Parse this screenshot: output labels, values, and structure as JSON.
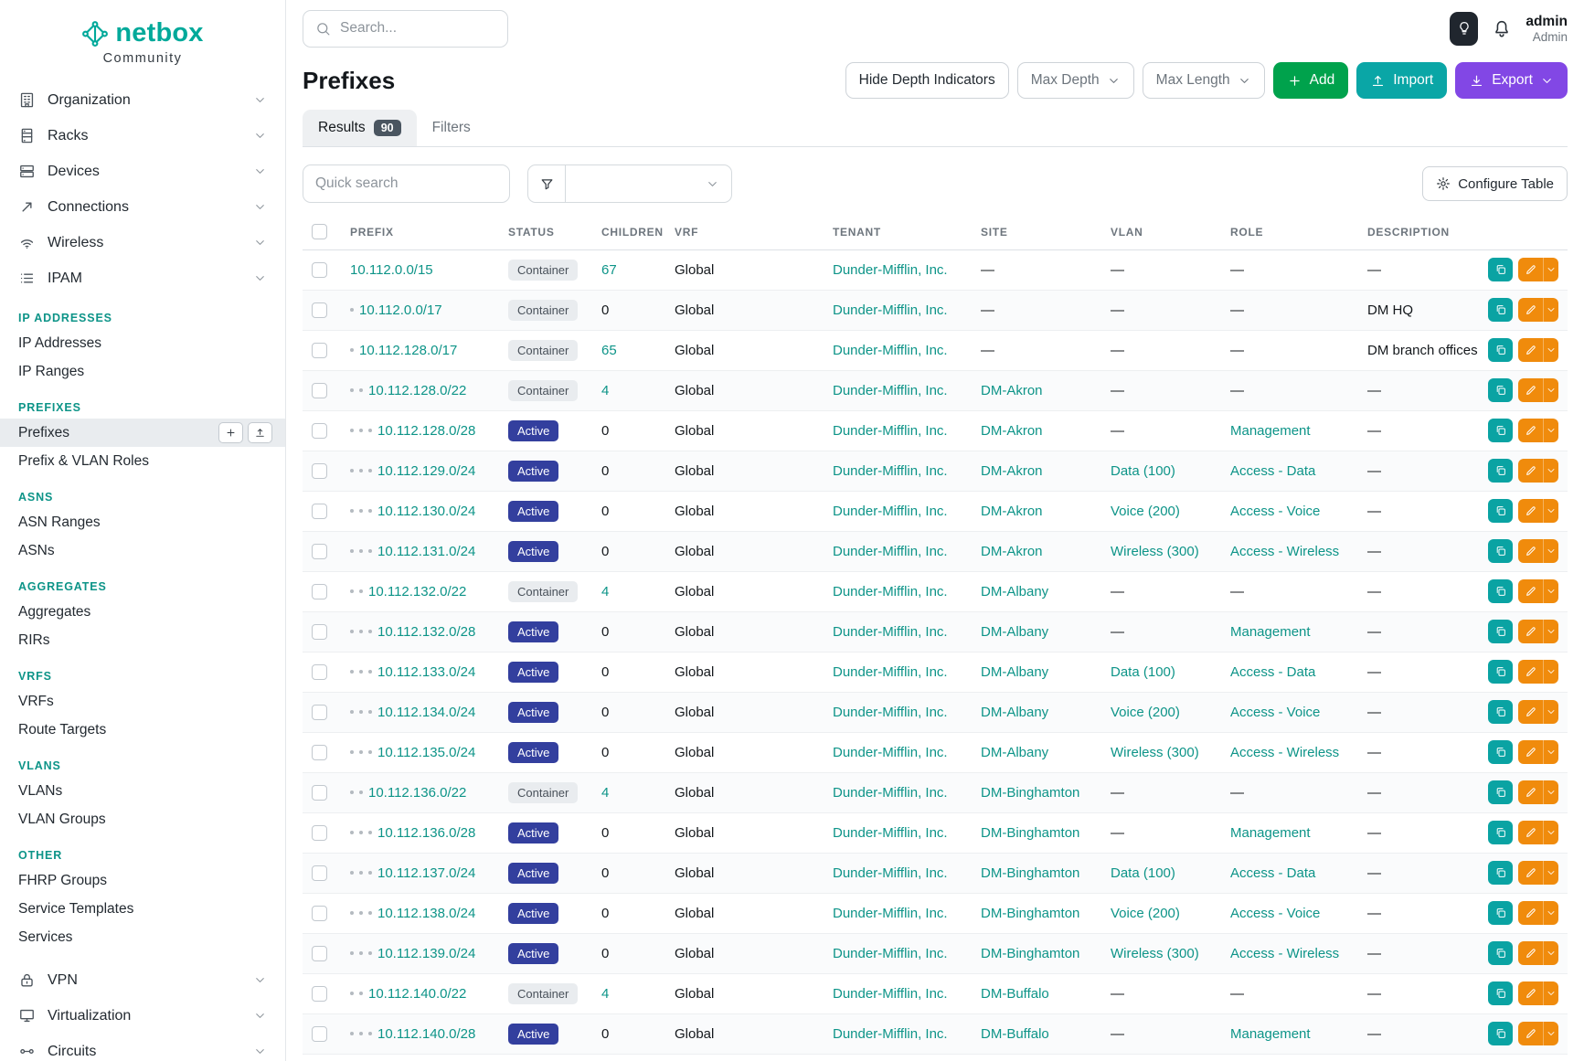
{
  "brand": {
    "name": "netbox",
    "subtitle": "Community"
  },
  "topbar": {
    "search_placeholder": "Search...",
    "user_name": "admin",
    "user_role": "Admin"
  },
  "sidebar": {
    "top_items": [
      {
        "label": "Organization",
        "icon": "organization-icon"
      },
      {
        "label": "Racks",
        "icon": "racks-icon"
      },
      {
        "label": "Devices",
        "icon": "devices-icon"
      },
      {
        "label": "Connections",
        "icon": "connections-icon"
      },
      {
        "label": "Wireless",
        "icon": "wireless-icon"
      },
      {
        "label": "IPAM",
        "icon": "ipam-icon"
      }
    ],
    "sections": [
      {
        "header": "IP ADDRESSES",
        "links": [
          {
            "label": "IP Addresses"
          },
          {
            "label": "IP Ranges"
          }
        ]
      },
      {
        "header": "PREFIXES",
        "links": [
          {
            "label": "Prefixes",
            "active": true,
            "quick_actions": true
          },
          {
            "label": "Prefix & VLAN Roles"
          }
        ]
      },
      {
        "header": "ASNS",
        "links": [
          {
            "label": "ASN Ranges"
          },
          {
            "label": "ASNs"
          }
        ]
      },
      {
        "header": "AGGREGATES",
        "links": [
          {
            "label": "Aggregates"
          },
          {
            "label": "RIRs"
          }
        ]
      },
      {
        "header": "VRFS",
        "links": [
          {
            "label": "VRFs"
          },
          {
            "label": "Route Targets"
          }
        ]
      },
      {
        "header": "VLANS",
        "links": [
          {
            "label": "VLANs"
          },
          {
            "label": "VLAN Groups"
          }
        ]
      },
      {
        "header": "OTHER",
        "links": [
          {
            "label": "FHRP Groups"
          },
          {
            "label": "Service Templates"
          },
          {
            "label": "Services"
          }
        ]
      }
    ],
    "bottom_items": [
      {
        "label": "VPN",
        "icon": "vpn-icon"
      },
      {
        "label": "Virtualization",
        "icon": "virtualization-icon"
      },
      {
        "label": "Circuits",
        "icon": "circuits-icon"
      }
    ]
  },
  "page": {
    "title": "Prefixes",
    "hide_depth_label": "Hide Depth Indicators",
    "max_depth_label": "Max Depth",
    "max_length_label": "Max Length",
    "add_label": "Add",
    "import_label": "Import",
    "export_label": "Export",
    "tabs": [
      {
        "label": "Results",
        "badge": "90",
        "active": true
      },
      {
        "label": "Filters",
        "active": false
      }
    ],
    "quick_search_placeholder": "Quick search",
    "configure_table_label": "Configure Table"
  },
  "colors": {
    "brand_teal": "#00a99a",
    "link_teal": "#0d9488",
    "add_green": "#00a24c",
    "import_teal": "#0aa6a6",
    "export_purple": "#8247e5",
    "active_badge": "#333f9e",
    "edit_orange": "#f08b0c"
  },
  "table": {
    "columns": [
      "PREFIX",
      "STATUS",
      "CHILDREN",
      "VRF",
      "TENANT",
      "SITE",
      "VLAN",
      "ROLE",
      "DESCRIPTION"
    ],
    "rows": [
      {
        "depth": 0,
        "prefix": "10.112.0.0/15",
        "status": "Container",
        "children": "67",
        "children_link": true,
        "vrf": "Global",
        "tenant": "Dunder-Mifflin, Inc.",
        "site": "—",
        "vlan": "—",
        "role": "—",
        "description": "—"
      },
      {
        "depth": 1,
        "prefix": "10.112.0.0/17",
        "status": "Container",
        "children": "0",
        "children_link": false,
        "vrf": "Global",
        "tenant": "Dunder-Mifflin, Inc.",
        "site": "—",
        "vlan": "—",
        "role": "—",
        "description": "DM HQ"
      },
      {
        "depth": 1,
        "prefix": "10.112.128.0/17",
        "status": "Container",
        "children": "65",
        "children_link": true,
        "vrf": "Global",
        "tenant": "Dunder-Mifflin, Inc.",
        "site": "—",
        "vlan": "—",
        "role": "—",
        "description": "DM branch offices"
      },
      {
        "depth": 2,
        "prefix": "10.112.128.0/22",
        "status": "Container",
        "children": "4",
        "children_link": true,
        "vrf": "Global",
        "tenant": "Dunder-Mifflin, Inc.",
        "site": "DM-Akron",
        "vlan": "—",
        "role": "—",
        "description": "—"
      },
      {
        "depth": 3,
        "prefix": "10.112.128.0/28",
        "status": "Active",
        "children": "0",
        "children_link": false,
        "vrf": "Global",
        "tenant": "Dunder-Mifflin, Inc.",
        "site": "DM-Akron",
        "vlan": "—",
        "role": "Management",
        "description": "—"
      },
      {
        "depth": 3,
        "prefix": "10.112.129.0/24",
        "status": "Active",
        "children": "0",
        "children_link": false,
        "vrf": "Global",
        "tenant": "Dunder-Mifflin, Inc.",
        "site": "DM-Akron",
        "vlan": "Data (100)",
        "role": "Access - Data",
        "description": "—"
      },
      {
        "depth": 3,
        "prefix": "10.112.130.0/24",
        "status": "Active",
        "children": "0",
        "children_link": false,
        "vrf": "Global",
        "tenant": "Dunder-Mifflin, Inc.",
        "site": "DM-Akron",
        "vlan": "Voice (200)",
        "role": "Access - Voice",
        "description": "—"
      },
      {
        "depth": 3,
        "prefix": "10.112.131.0/24",
        "status": "Active",
        "children": "0",
        "children_link": false,
        "vrf": "Global",
        "tenant": "Dunder-Mifflin, Inc.",
        "site": "DM-Akron",
        "vlan": "Wireless (300)",
        "role": "Access - Wireless",
        "description": "—"
      },
      {
        "depth": 2,
        "prefix": "10.112.132.0/22",
        "status": "Container",
        "children": "4",
        "children_link": true,
        "vrf": "Global",
        "tenant": "Dunder-Mifflin, Inc.",
        "site": "DM-Albany",
        "vlan": "—",
        "role": "—",
        "description": "—"
      },
      {
        "depth": 3,
        "prefix": "10.112.132.0/28",
        "status": "Active",
        "children": "0",
        "children_link": false,
        "vrf": "Global",
        "tenant": "Dunder-Mifflin, Inc.",
        "site": "DM-Albany",
        "vlan": "—",
        "role": "Management",
        "description": "—"
      },
      {
        "depth": 3,
        "prefix": "10.112.133.0/24",
        "status": "Active",
        "children": "0",
        "children_link": false,
        "vrf": "Global",
        "tenant": "Dunder-Mifflin, Inc.",
        "site": "DM-Albany",
        "vlan": "Data (100)",
        "role": "Access - Data",
        "description": "—"
      },
      {
        "depth": 3,
        "prefix": "10.112.134.0/24",
        "status": "Active",
        "children": "0",
        "children_link": false,
        "vrf": "Global",
        "tenant": "Dunder-Mifflin, Inc.",
        "site": "DM-Albany",
        "vlan": "Voice (200)",
        "role": "Access - Voice",
        "description": "—"
      },
      {
        "depth": 3,
        "prefix": "10.112.135.0/24",
        "status": "Active",
        "children": "0",
        "children_link": false,
        "vrf": "Global",
        "tenant": "Dunder-Mifflin, Inc.",
        "site": "DM-Albany",
        "vlan": "Wireless (300)",
        "role": "Access - Wireless",
        "description": "—"
      },
      {
        "depth": 2,
        "prefix": "10.112.136.0/22",
        "status": "Container",
        "children": "4",
        "children_link": true,
        "vrf": "Global",
        "tenant": "Dunder-Mifflin, Inc.",
        "site": "DM-Binghamton",
        "vlan": "—",
        "role": "—",
        "description": "—"
      },
      {
        "depth": 3,
        "prefix": "10.112.136.0/28",
        "status": "Active",
        "children": "0",
        "children_link": false,
        "vrf": "Global",
        "tenant": "Dunder-Mifflin, Inc.",
        "site": "DM-Binghamton",
        "vlan": "—",
        "role": "Management",
        "description": "—"
      },
      {
        "depth": 3,
        "prefix": "10.112.137.0/24",
        "status": "Active",
        "children": "0",
        "children_link": false,
        "vrf": "Global",
        "tenant": "Dunder-Mifflin, Inc.",
        "site": "DM-Binghamton",
        "vlan": "Data (100)",
        "role": "Access - Data",
        "description": "—"
      },
      {
        "depth": 3,
        "prefix": "10.112.138.0/24",
        "status": "Active",
        "children": "0",
        "children_link": false,
        "vrf": "Global",
        "tenant": "Dunder-Mifflin, Inc.",
        "site": "DM-Binghamton",
        "vlan": "Voice (200)",
        "role": "Access - Voice",
        "description": "—"
      },
      {
        "depth": 3,
        "prefix": "10.112.139.0/24",
        "status": "Active",
        "children": "0",
        "children_link": false,
        "vrf": "Global",
        "tenant": "Dunder-Mifflin, Inc.",
        "site": "DM-Binghamton",
        "vlan": "Wireless (300)",
        "role": "Access - Wireless",
        "description": "—"
      },
      {
        "depth": 2,
        "prefix": "10.112.140.0/22",
        "status": "Container",
        "children": "4",
        "children_link": true,
        "vrf": "Global",
        "tenant": "Dunder-Mifflin, Inc.",
        "site": "DM-Buffalo",
        "vlan": "—",
        "role": "—",
        "description": "—"
      },
      {
        "depth": 3,
        "prefix": "10.112.140.0/28",
        "status": "Active",
        "children": "0",
        "children_link": false,
        "vrf": "Global",
        "tenant": "Dunder-Mifflin, Inc.",
        "site": "DM-Buffalo",
        "vlan": "—",
        "role": "Management",
        "description": "—"
      }
    ]
  }
}
